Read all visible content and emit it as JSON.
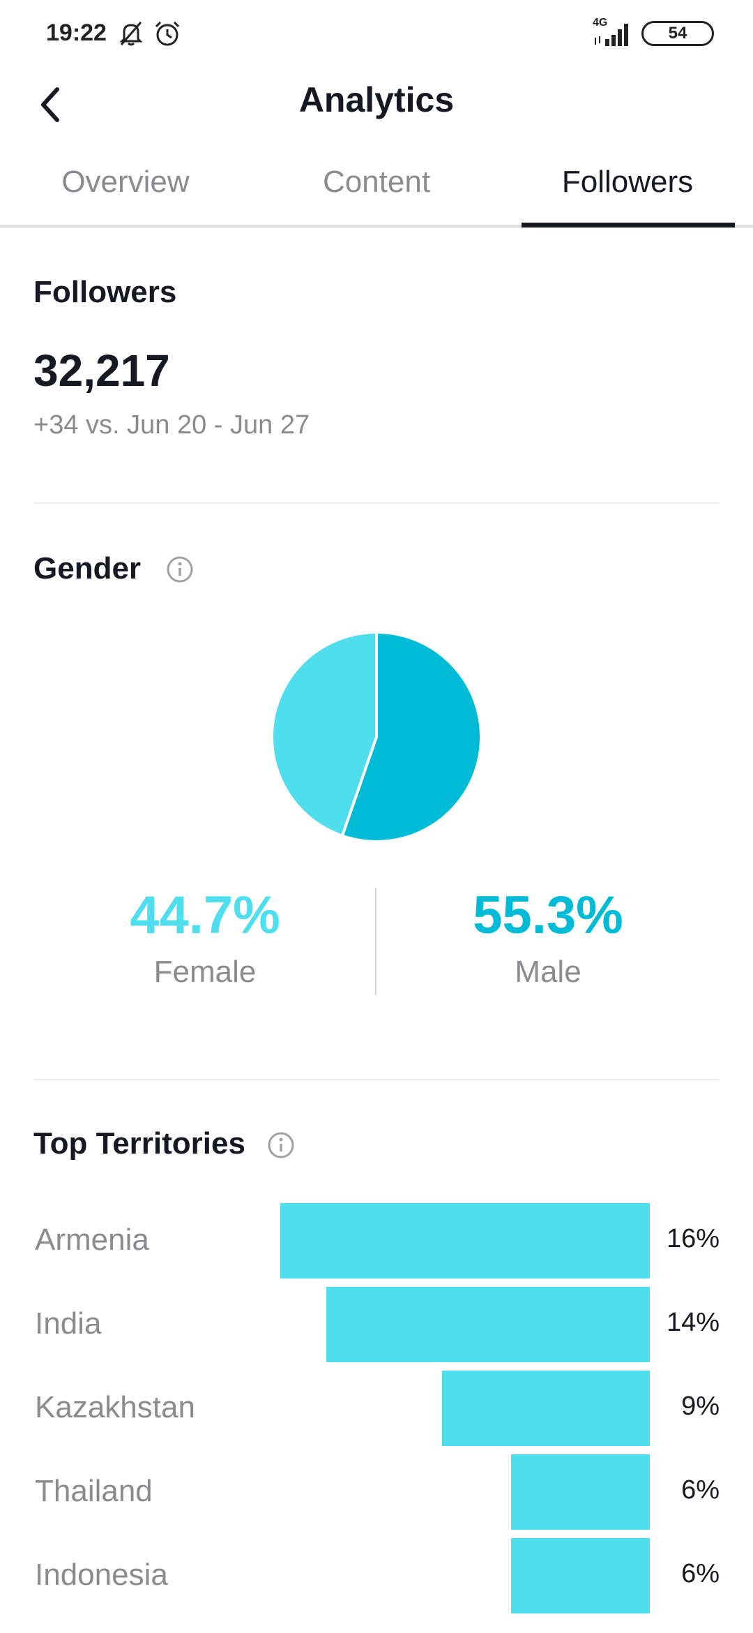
{
  "status_bar": {
    "time": "19:22",
    "network": "4G",
    "battery": "54",
    "icons": [
      "mute-icon",
      "alarm-icon",
      "signal-icon",
      "battery-icon"
    ]
  },
  "header": {
    "title": "Analytics",
    "back_icon": "back-arrow-icon"
  },
  "tabs": [
    {
      "label": "Overview",
      "active": false
    },
    {
      "label": "Content",
      "active": false
    },
    {
      "label": "Followers",
      "active": true
    }
  ],
  "followers": {
    "title": "Followers",
    "count": "32,217",
    "change": "+34 vs. Jun 20 - Jun 27"
  },
  "gender": {
    "title": "Gender",
    "info_icon": "info-icon",
    "female": {
      "percent": "44.7%",
      "label": "Female",
      "color": "#4fdeee"
    },
    "male": {
      "percent": "55.3%",
      "label": "Male",
      "color": "#00bbd5"
    }
  },
  "territories": {
    "title": "Top Territories",
    "info_icon": "info-icon",
    "bar_color": "#4fdeee",
    "items": [
      {
        "name": "Armenia",
        "percent": "16%"
      },
      {
        "name": "India",
        "percent": "14%"
      },
      {
        "name": "Kazakhstan",
        "percent": "9%"
      },
      {
        "name": "Thailand",
        "percent": "6%"
      },
      {
        "name": "Indonesia",
        "percent": "6%"
      }
    ]
  },
  "chart_data": [
    {
      "type": "pie",
      "categories": [
        "Female",
        "Male"
      ],
      "values": [
        44.7,
        55.3
      ]
    },
    {
      "type": "bar",
      "categories": [
        "Armenia",
        "India",
        "Kazakhstan",
        "Thailand",
        "Indonesia"
      ],
      "values": [
        16,
        14,
        9,
        6,
        6
      ]
    }
  ]
}
